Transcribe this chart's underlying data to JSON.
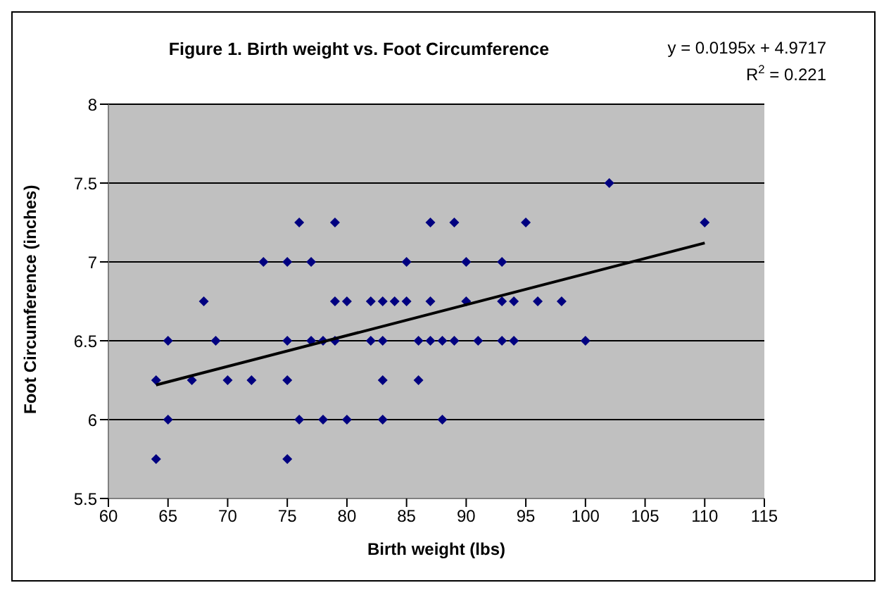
{
  "chart_data": {
    "type": "scatter",
    "title": "Figure 1.  Birth weight vs. Foot Circumference",
    "xlabel": "Birth weight (lbs)",
    "ylabel": "Foot Circumference (inches)",
    "annotations": [
      "y = 0.0195x + 4.9717",
      "R$^{2}$ = 0.221"
    ],
    "xlim": [
      60,
      115
    ],
    "xticks": [
      60,
      65,
      70,
      75,
      80,
      85,
      90,
      95,
      100,
      105,
      110,
      115
    ],
    "ylim": [
      5.5,
      8
    ],
    "yticks": [
      5.5,
      6,
      6.5,
      7,
      7.5,
      8
    ],
    "grid": "y",
    "marker": "diamond",
    "series": [
      {
        "color": "#000080",
        "x": [
          64,
          64,
          65,
          65,
          67,
          68,
          69,
          70,
          72,
          73,
          75,
          75,
          75,
          75,
          76,
          76,
          77,
          77,
          78,
          78,
          79,
          79,
          79,
          80,
          80,
          82,
          82,
          83,
          83,
          83,
          83,
          84,
          85,
          85,
          86,
          86,
          87,
          87,
          87,
          88,
          88,
          89,
          89,
          90,
          90,
          91,
          93,
          93,
          93,
          94,
          94,
          95,
          96,
          98,
          100,
          102,
          110
        ],
        "values": [
          5.75,
          6.25,
          6.5,
          6,
          6.25,
          6.75,
          6.5,
          6.25,
          6.25,
          7,
          7,
          6.5,
          6.25,
          5.75,
          7.25,
          6,
          7,
          6.5,
          6.5,
          6,
          7.25,
          6.75,
          6.5,
          6.75,
          6,
          6.75,
          6.5,
          6.75,
          6.5,
          6.25,
          6,
          6.75,
          7,
          6.75,
          6.5,
          6.25,
          7.25,
          6.75,
          6.5,
          6.5,
          6,
          7.25,
          6.5,
          7,
          6.75,
          6.5,
          7,
          6.75,
          6.5,
          6.75,
          6.5,
          7.25,
          6.75,
          6.75,
          6.5,
          7.5,
          7.25
        ]
      },
      {
        "type": "line",
        "color": "#000000",
        "marker": "none",
        "line_style": "solid",
        "x": [
          64,
          110
        ],
        "values": [
          6.22,
          7.12
        ]
      }
    ]
  }
}
